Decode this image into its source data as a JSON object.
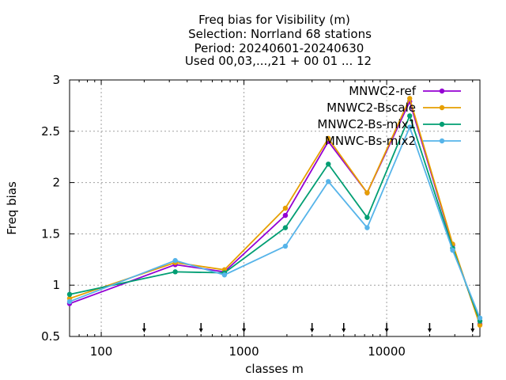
{
  "chart_data": {
    "type": "line",
    "title_lines": [
      "Freq bias  for Visibility (m)",
      "Selection: Norrland     68 stations",
      "Period: 20240601-20240630",
      "Used 00,03,...,21 + 00 01 ... 12"
    ],
    "xlabel": "classes m",
    "ylabel": "Freq bias",
    "x_scale": "log",
    "xlim": [
      60,
      45000
    ],
    "ylim": [
      0.5,
      3
    ],
    "x_ticks": [
      100,
      1000,
      10000
    ],
    "x_tick_labels": [
      "100",
      "1000",
      "10000"
    ],
    "y_ticks": [
      0.5,
      1,
      1.5,
      2,
      2.5,
      3
    ],
    "y_tick_labels": [
      "0.5",
      "1",
      "1.5",
      "2",
      "2.5",
      "3"
    ],
    "grid": true,
    "legend_position": "top-right",
    "class_markers": [
      200,
      500,
      1000,
      3000,
      5000,
      10000,
      20000,
      40000
    ],
    "x": [
      60,
      330,
      730,
      1950,
      3900,
      7300,
      14500,
      29000,
      45000
    ],
    "series": [
      {
        "name": "MNWC2-ref",
        "color": "#9400d3",
        "values": [
          0.82,
          1.2,
          1.13,
          1.68,
          2.4,
          1.9,
          2.79,
          1.39,
          0.62
        ]
      },
      {
        "name": "MNWC2-Bscale",
        "color": "#e69f00",
        "values": [
          0.87,
          1.22,
          1.15,
          1.75,
          2.43,
          1.9,
          2.82,
          1.4,
          0.61
        ]
      },
      {
        "name": "MNWC2-Bs-mix1",
        "color": "#009e73",
        "values": [
          0.91,
          1.13,
          1.12,
          1.56,
          2.18,
          1.66,
          2.65,
          1.36,
          0.65
        ]
      },
      {
        "name": "MNWC-Bs-mix2",
        "color": "#56b4e9",
        "values": [
          0.84,
          1.24,
          1.1,
          1.38,
          2.01,
          1.56,
          2.54,
          1.34,
          0.68
        ]
      }
    ]
  }
}
